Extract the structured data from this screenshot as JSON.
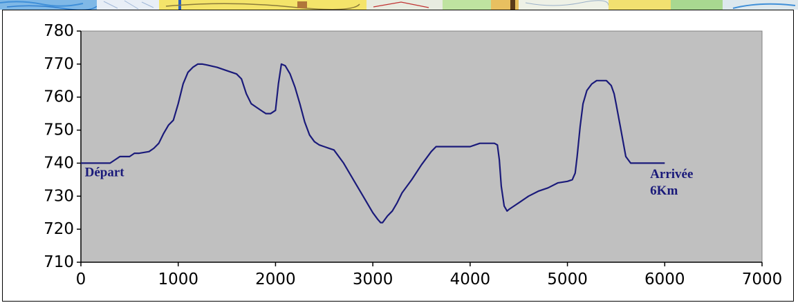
{
  "chart_data": {
    "type": "line",
    "title": "",
    "xlabel": "",
    "ylabel": "",
    "xlim": [
      0,
      7000
    ],
    "ylim": [
      710,
      780
    ],
    "x_ticks": [
      0,
      1000,
      2000,
      3000,
      4000,
      5000,
      6000,
      7000
    ],
    "y_ticks": [
      710,
      720,
      730,
      740,
      750,
      760,
      770,
      780
    ],
    "grid": false,
    "legend": "none",
    "colors": {
      "plot_background": "#c0c0c0",
      "line": "#1a1a7a",
      "annotation": "#1a1a7a"
    },
    "annotations": [
      {
        "text": "Départ",
        "x": 40,
        "y": 736
      },
      {
        "text": "Arrivée",
        "x": 5850,
        "y": 735.5
      },
      {
        "text": "6Km",
        "x": 5850,
        "y": 730.5
      }
    ],
    "series": [
      {
        "x": [
          0,
          280,
          300,
          350,
          400,
          500,
          550,
          600,
          700,
          750,
          800,
          850,
          900,
          950,
          1000,
          1050,
          1100,
          1150,
          1200,
          1250,
          1300,
          1400,
          1500,
          1600,
          1650,
          1700,
          1750,
          1800,
          1850,
          1900,
          1950,
          2000,
          2030,
          2060,
          2100,
          2150,
          2200,
          2250,
          2300,
          2350,
          2400,
          2450,
          2500,
          2550,
          2600,
          2700,
          2800,
          2900,
          3000,
          3050,
          3080,
          3100,
          3150,
          3200,
          3250,
          3300,
          3400,
          3500,
          3600,
          3650,
          3700,
          3800,
          3900,
          4000,
          4050,
          4100,
          4200,
          4250,
          4280,
          4300,
          4320,
          4350,
          4380,
          4400,
          4450,
          4500,
          4600,
          4700,
          4800,
          4900,
          5000,
          5050,
          5080,
          5100,
          5130,
          5160,
          5200,
          5250,
          5300,
          5350,
          5400,
          5450,
          5480,
          5500,
          5550,
          5600,
          5650,
          5700,
          5800,
          6000
        ],
        "y": [
          740,
          740,
          740,
          741,
          742,
          742,
          743,
          743,
          743.5,
          744.5,
          746,
          749,
          751.5,
          753,
          758,
          764,
          767.5,
          769,
          770,
          770,
          769.7,
          769,
          768,
          767,
          765.5,
          761,
          758,
          757,
          756,
          755,
          755,
          756,
          764,
          770,
          769.5,
          767,
          763,
          758,
          752.5,
          748.5,
          746.5,
          745.5,
          745,
          744.5,
          744,
          740,
          735,
          730,
          725,
          723,
          722,
          722,
          724,
          725.5,
          728,
          731,
          735,
          739.5,
          743.5,
          745,
          745,
          745,
          745,
          745,
          745.5,
          746,
          746,
          746,
          745.5,
          741,
          733,
          727,
          725.5,
          726,
          727,
          728,
          730,
          731.5,
          732.5,
          734,
          734.5,
          735,
          737,
          742,
          751,
          758,
          762,
          764,
          765,
          765,
          765,
          763.5,
          761,
          758,
          750,
          742,
          740,
          740,
          740,
          740
        ]
      }
    ]
  }
}
